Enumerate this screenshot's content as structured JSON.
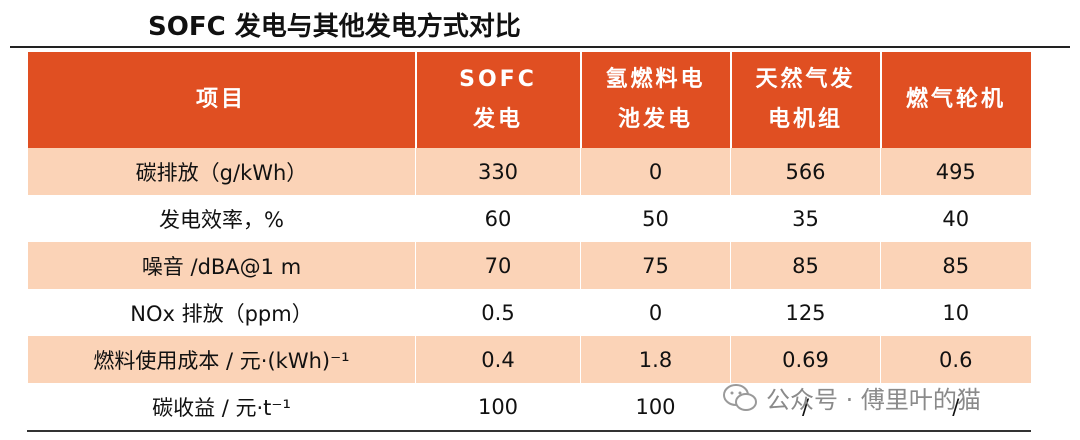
{
  "title": "SOFC 发电与其他发电方式对比",
  "table": {
    "header": [
      "项目",
      "SOFC 发电",
      "氢燃料电池发电",
      "天然气发电机组",
      "燃气轮机"
    ],
    "rows": [
      [
        "碳排放（g/kWh）",
        "330",
        "0",
        "566",
        "495"
      ],
      [
        "发电效率，%",
        "60",
        "50",
        "35",
        "40"
      ],
      [
        "噪音 /dBA@1 m",
        "70",
        "75",
        "85",
        "85"
      ],
      [
        "NOx 排放（ppm）",
        "0.5",
        "0",
        "125",
        "10"
      ],
      [
        "燃料使用成本 / 元·(kWh)⁻¹",
        "0.4",
        "1.8",
        "0.69",
        "0.6"
      ],
      [
        "碳收益 / 元·t⁻¹",
        "100",
        "100",
        "/",
        "/"
      ]
    ]
  },
  "watermark": "公众号 · 傅里叶的猫"
}
